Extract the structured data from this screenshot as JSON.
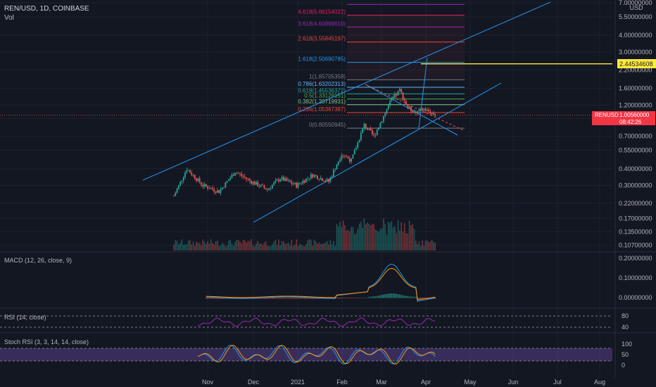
{
  "header": {
    "symbol_line": "REN/USD, 1D, COINBASE",
    "vol_label": "Vol"
  },
  "axis": {
    "currency": "USD"
  },
  "price_labels": {
    "current_symbol": "RENUSD",
    "current_price": "1.00560000",
    "countdown": "08:42:26",
    "highlight_price": "2.44534608"
  },
  "colors": {
    "background": "#131722",
    "grid": "#1e222d",
    "up": "#26a69a",
    "down": "#ef5350",
    "channel": "#2196f3",
    "highlight": "#ffeb3b",
    "macd_line": "#2196f3",
    "signal_line": "#ff9800",
    "rsi_line": "#9c27b0",
    "stoch_k": "#2196f3",
    "stoch_d": "#ff9800",
    "band_fill": "#7e57c2"
  },
  "panes": {
    "macd_title": "MACD (12, 26, close, 9)",
    "rsi_title": "RSI (14, close)",
    "stoch_title": "Stoch RSI (3, 3, 14, 14, close)"
  },
  "chart_data": {
    "type": "candlestick",
    "scale": "log",
    "ylim": [
      0.1,
      7.0
    ],
    "y_ticks": [
      "7.00000000",
      "5.50000000",
      "4.00000000",
      "3.00000000",
      "2.20000000",
      "1.60000000",
      "1.20000000",
      "0.95000000",
      "0.70000000",
      "0.55000000",
      "0.40000000",
      "0.30000000",
      "0.22000000",
      "0.17000000",
      "0.13500000",
      "0.10700000"
    ],
    "y_tick_values": [
      7.0,
      5.5,
      4.0,
      3.0,
      2.2,
      1.6,
      1.2,
      0.95,
      0.7,
      0.55,
      0.4,
      0.3,
      0.22,
      0.17,
      0.135,
      0.107
    ],
    "x_ticks": [
      "Nov",
      "Dec",
      "2021",
      "Feb",
      "Mar",
      "Apr",
      "May",
      "Jun",
      "Jul",
      "Aug"
    ],
    "fib_levels": [
      {
        "label": "4.618(5.66154022)",
        "value": 5.66154022,
        "color": "#e91e63"
      },
      {
        "label": "3.618(4.60999610)",
        "value": 4.6099961,
        "color": "#9c27b0"
      },
      {
        "label": "2.618(3.55845197)",
        "value": 3.55845197,
        "color": "#f44336"
      },
      {
        "label": "1.618(2.50690785)",
        "value": 2.50690785,
        "color": "#2196f3"
      },
      {
        "label": "1(1.85705358)",
        "value": 1.85705358,
        "color": "#787b86"
      },
      {
        "label": "0.786(1.63202313)",
        "value": 1.63202313,
        "color": "#64b5f6"
      },
      {
        "label": "0.618(1.45536372)",
        "value": 1.45536372,
        "color": "#26a69a"
      },
      {
        "label": "0.5(1.33128151)",
        "value": 1.33128151,
        "color": "#4caf50"
      },
      {
        "label": "0.382(1.20719931)",
        "value": 1.20719931,
        "color": "#81c784"
      },
      {
        "label": "0.236(1.05367387)",
        "value": 1.05367387,
        "color": "#f44336"
      },
      {
        "label": "0(0.80550945)",
        "value": 0.80550945,
        "color": "#787b86"
      }
    ],
    "current_price": 1.0056,
    "highlight_price": 2.44534608,
    "rsi_ticks": [
      "80",
      "40"
    ],
    "stoch_ticks": [
      "100",
      "50",
      "0"
    ],
    "macd_ticks": [
      "0.20000000",
      "0.10000000",
      "0.00000000"
    ]
  }
}
